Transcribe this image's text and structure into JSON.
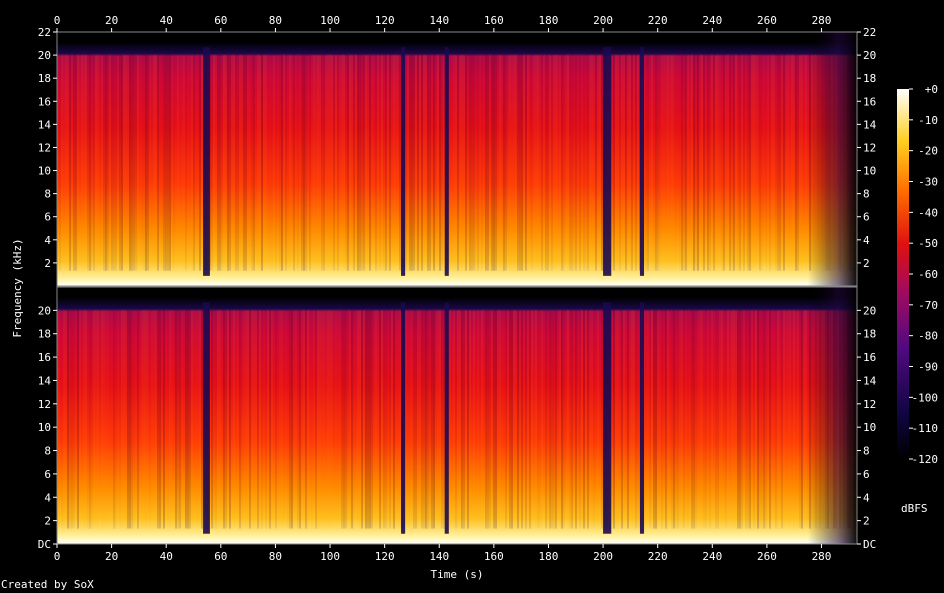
{
  "chart_data": {
    "type": "heatmap",
    "xlabel": "Time (s)",
    "ylabel": "Frequency (kHz)",
    "x_ticks": [
      0,
      20,
      40,
      60,
      80,
      100,
      120,
      140,
      160,
      180,
      200,
      220,
      240,
      260,
      280
    ],
    "x_range": [
      0,
      293
    ],
    "y_ticks_top": [
      "2",
      "4",
      "6",
      "8",
      "10",
      "12",
      "14",
      "16",
      "18",
      "20",
      "22"
    ],
    "y_ticks_bottom": [
      "DC",
      "2",
      "4",
      "6",
      "8",
      "10",
      "12",
      "14",
      "16",
      "18",
      "20"
    ],
    "y_range_khz": [
      0,
      22
    ],
    "spectral_cutoff_khz": 20.2,
    "channels": 2,
    "colorbar": {
      "unit": "dBFS",
      "ticks": [
        "+0",
        "-10",
        "-20",
        "-30",
        "-40",
        "-50",
        "-60",
        "-70",
        "-80",
        "-90",
        "-100",
        "-110",
        "-120"
      ],
      "range_db": [
        -120,
        0
      ]
    },
    "quiet_segments_s": [
      [
        53.5,
        56
      ],
      [
        126,
        127.5
      ],
      [
        142,
        143.5
      ],
      [
        200,
        203
      ],
      [
        213.5,
        215
      ]
    ],
    "fade_out_s": [
      275,
      293
    ],
    "colors": {
      "black": "#000000",
      "navy": "#0f0540",
      "purple": "#500a80",
      "magenta": "#a00a60",
      "red": "#e01010",
      "orange": "#ff6a00",
      "yellow": "#ffd020",
      "white": "#ffffff"
    }
  },
  "footer": {
    "credit": "Created by SoX"
  }
}
